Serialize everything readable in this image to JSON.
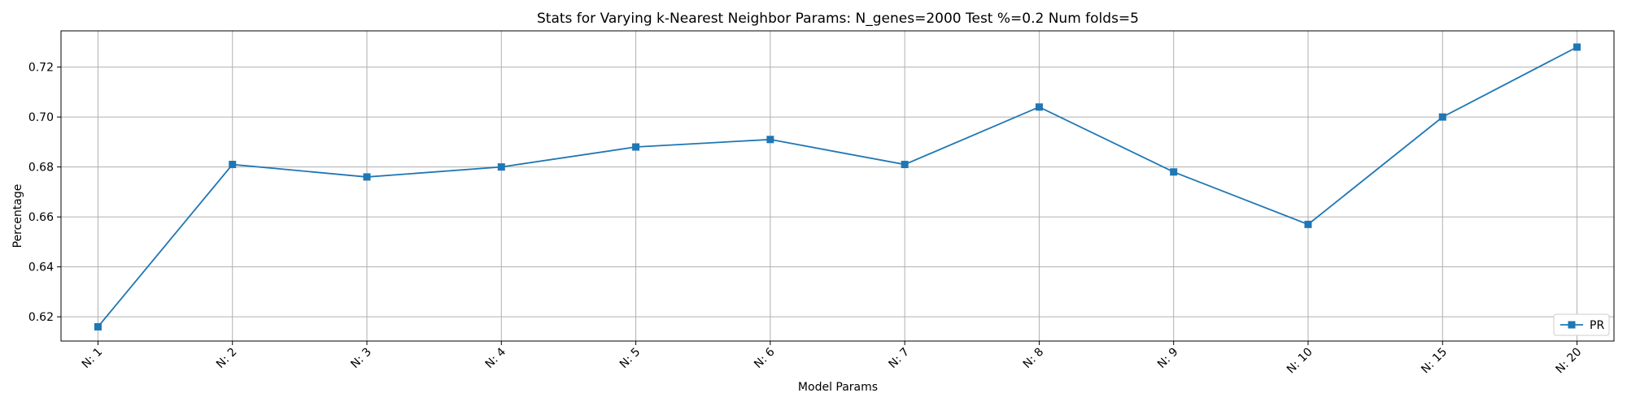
{
  "chart_data": {
    "type": "line",
    "title": "Stats for Varying k-Nearest Neighbor Params: N_genes=2000 Test %=0.2 Num folds=5",
    "xlabel": "Model Params",
    "ylabel": "Percentage",
    "categories": [
      "N: 1",
      "N: 2",
      "N: 3",
      "N: 4",
      "N: 5",
      "N: 6",
      "N: 7",
      "N: 8",
      "N: 9",
      "N: 10",
      "N: 15",
      "N: 20"
    ],
    "series": [
      {
        "name": "PR",
        "color": "#1f77b4",
        "marker": "square",
        "values": [
          0.616,
          0.681,
          0.676,
          0.68,
          0.688,
          0.691,
          0.681,
          0.704,
          0.678,
          0.657,
          0.7,
          0.728
        ]
      }
    ],
    "ylim": [
      0.6103,
      0.7345
    ],
    "yticks": [
      0.62,
      0.64,
      0.66,
      0.68,
      0.7,
      0.72
    ],
    "ytick_labels": [
      "0.62",
      "0.64",
      "0.66",
      "0.68",
      "0.70",
      "0.72"
    ],
    "grid": true,
    "legend_position": "lower-right"
  }
}
